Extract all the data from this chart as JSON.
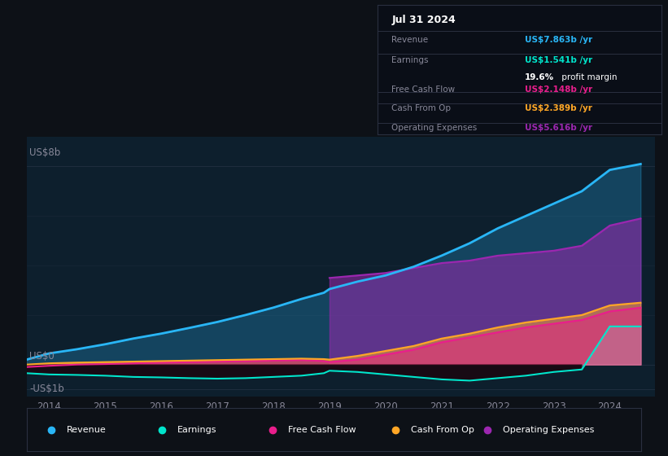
{
  "bg_color": "#0d1117",
  "plot_bg_color": "#0d1f2d",
  "ylabel": "US$8b",
  "ylabel_zero": "US$0",
  "ylabel_neg": "-US$1b",
  "years": [
    2013.6,
    2014.0,
    2014.5,
    2015.0,
    2015.5,
    2016.0,
    2016.5,
    2017.0,
    2017.5,
    2018.0,
    2018.5,
    2018.9,
    2019.0,
    2019.5,
    2020.0,
    2020.5,
    2021.0,
    2021.5,
    2022.0,
    2022.5,
    2023.0,
    2023.5,
    2024.0,
    2024.55
  ],
  "revenue": [
    0.2,
    0.45,
    0.62,
    0.82,
    1.05,
    1.25,
    1.48,
    1.72,
    2.0,
    2.3,
    2.65,
    2.9,
    3.05,
    3.35,
    3.6,
    3.95,
    4.4,
    4.9,
    5.5,
    6.0,
    6.5,
    7.0,
    7.863,
    8.1
  ],
  "earnings": [
    -0.35,
    -0.4,
    -0.42,
    -0.45,
    -0.5,
    -0.52,
    -0.55,
    -0.57,
    -0.55,
    -0.5,
    -0.45,
    -0.35,
    -0.25,
    -0.3,
    -0.4,
    -0.5,
    -0.6,
    -0.65,
    -0.55,
    -0.45,
    -0.3,
    -0.2,
    1.541,
    1.541
  ],
  "free_cash_flow": [
    -0.1,
    -0.05,
    0.0,
    0.02,
    0.05,
    0.08,
    0.1,
    0.12,
    0.14,
    0.16,
    0.18,
    0.14,
    0.1,
    0.2,
    0.4,
    0.6,
    0.9,
    1.1,
    1.3,
    1.5,
    1.65,
    1.8,
    2.148,
    2.3
  ],
  "cash_from_op": [
    0.0,
    0.05,
    0.08,
    0.1,
    0.12,
    0.14,
    0.16,
    0.18,
    0.2,
    0.22,
    0.24,
    0.22,
    0.2,
    0.35,
    0.55,
    0.75,
    1.05,
    1.25,
    1.5,
    1.7,
    1.85,
    2.0,
    2.389,
    2.5
  ],
  "operating_expenses_x": [
    2019.0,
    2019.5,
    2020.0,
    2020.5,
    2021.0,
    2021.5,
    2022.0,
    2022.5,
    2023.0,
    2023.5,
    2024.0,
    2024.55
  ],
  "operating_expenses": [
    3.5,
    3.6,
    3.7,
    3.9,
    4.1,
    4.2,
    4.4,
    4.5,
    4.6,
    4.8,
    5.616,
    5.9
  ],
  "earnings_fill_color": "#1a0812",
  "revenue_color": "#29b6f6",
  "earnings_color": "#00e5cc",
  "free_cash_flow_color": "#e91e8c",
  "cash_from_op_color": "#ffa726",
  "operating_expenses_color": "#9c27b0",
  "revenue_fill_alpha": 0.25,
  "opex_fill_alpha": 0.55,
  "cfop_fill_alpha": 0.5,
  "fcf_fill_alpha": 0.5,
  "grid_color": "#1e2d3d",
  "text_color": "#888899",
  "white_color": "#ffffff",
  "info_box_bg": "#0a0e17",
  "info_box_border": "#2a3040",
  "xlim": [
    2013.6,
    2024.8
  ],
  "ylim": [
    -1.3,
    9.2
  ],
  "xticks": [
    2014,
    2015,
    2016,
    2017,
    2018,
    2019,
    2020,
    2021,
    2022,
    2023,
    2024
  ],
  "legend_items": [
    {
      "label": "Revenue",
      "color": "#29b6f6"
    },
    {
      "label": "Earnings",
      "color": "#00e5cc"
    },
    {
      "label": "Free Cash Flow",
      "color": "#e91e8c"
    },
    {
      "label": "Cash From Op",
      "color": "#ffa726"
    },
    {
      "label": "Operating Expenses",
      "color": "#9c27b0"
    }
  ],
  "info_title": "Jul 31 2024",
  "info_rows": [
    {
      "label": "Revenue",
      "value": "US$7.863b /yr",
      "value_color": "#29b6f6",
      "sub": null
    },
    {
      "label": "Earnings",
      "value": "US$1.541b /yr",
      "value_color": "#00e5cc",
      "sub": "19.6% profit margin"
    },
    {
      "label": "Free Cash Flow",
      "value": "US$2.148b /yr",
      "value_color": "#e91e8c",
      "sub": null
    },
    {
      "label": "Cash From Op",
      "value": "US$2.389b /yr",
      "value_color": "#ffa726",
      "sub": null
    },
    {
      "label": "Operating Expenses",
      "value": "US$5.616b /yr",
      "value_color": "#9c27b0",
      "sub": null
    }
  ]
}
